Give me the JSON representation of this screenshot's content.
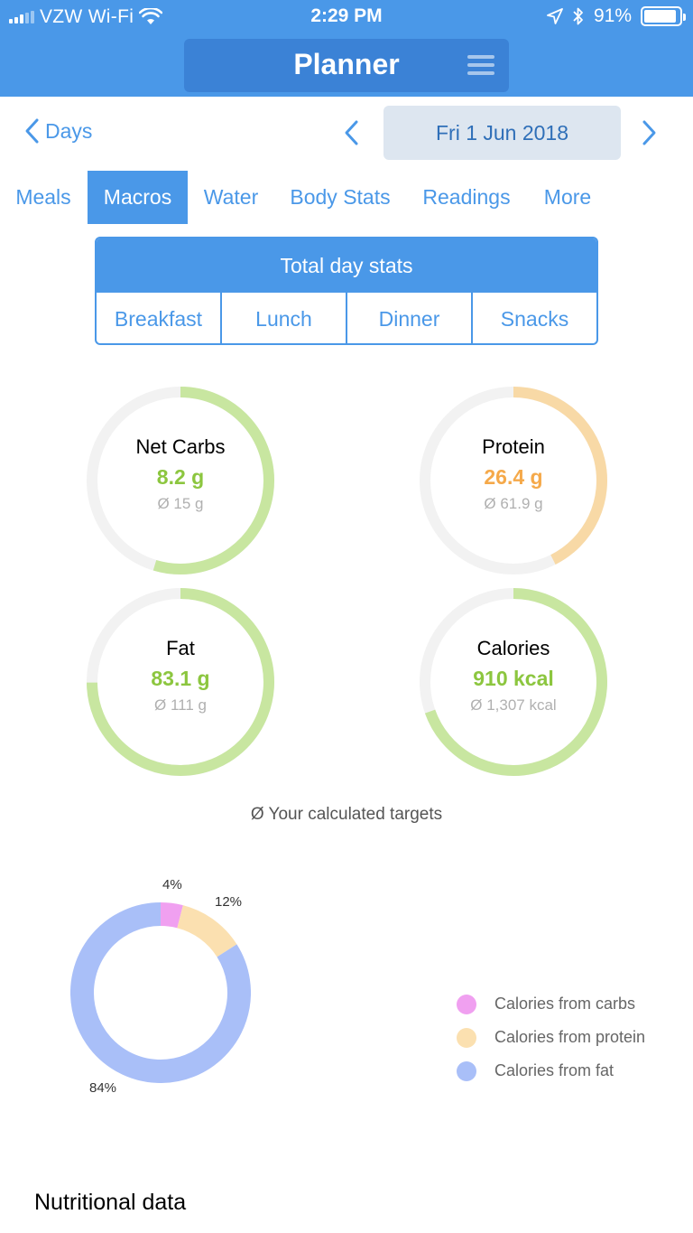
{
  "status_bar": {
    "carrier": "VZW Wi-Fi",
    "time": "2:29 PM",
    "battery_pct": "91%",
    "battery_level": 0.91
  },
  "header": {
    "title": "Planner"
  },
  "date_nav": {
    "back_label": "Days",
    "current_date": "Fri 1 Jun 2018"
  },
  "tabs": [
    {
      "label": "Meals",
      "active": false
    },
    {
      "label": "Macros",
      "active": true
    },
    {
      "label": "Water",
      "active": false
    },
    {
      "label": "Body Stats",
      "active": false
    },
    {
      "label": "Readings",
      "active": false
    },
    {
      "label": "More",
      "active": false
    }
  ],
  "segment": {
    "selected": "Total day stats",
    "options": [
      "Breakfast",
      "Lunch",
      "Dinner",
      "Snacks"
    ]
  },
  "rings": [
    {
      "title": "Net Carbs",
      "value": "8.2 g",
      "target": "Ø 15 g",
      "progress": 0.547,
      "color": "#c8e6a0",
      "value_color": "#8cc63f"
    },
    {
      "title": "Protein",
      "value": "26.4 g",
      "target": "Ø 61.9 g",
      "progress": 0.426,
      "color": "#f8d9a6",
      "value_color": "#f5a94a"
    },
    {
      "title": "Fat",
      "value": "83.1 g",
      "target": "Ø 111 g",
      "progress": 0.749,
      "color": "#c8e6a0",
      "value_color": "#8cc63f"
    },
    {
      "title": "Calories",
      "value": "910 kcal",
      "target": "Ø 1,307 kcal",
      "progress": 0.696,
      "color": "#c8e6a0",
      "value_color": "#8cc63f"
    }
  ],
  "targets_note": "Ø Your calculated targets",
  "chart_data": {
    "type": "pie",
    "categories": [
      "Calories from carbs",
      "Calories from protein",
      "Calories from fat"
    ],
    "values": [
      4,
      12,
      84
    ],
    "labels": [
      "4%",
      "12%",
      "84%"
    ],
    "colors": [
      "#f0a0f0",
      "#fbe0b0",
      "#a9bff8"
    ],
    "legend": "right"
  },
  "nutritional_title": "Nutritional data",
  "colors": {
    "primary": "#4a98e8",
    "ring_track": "#f2f2f2"
  }
}
